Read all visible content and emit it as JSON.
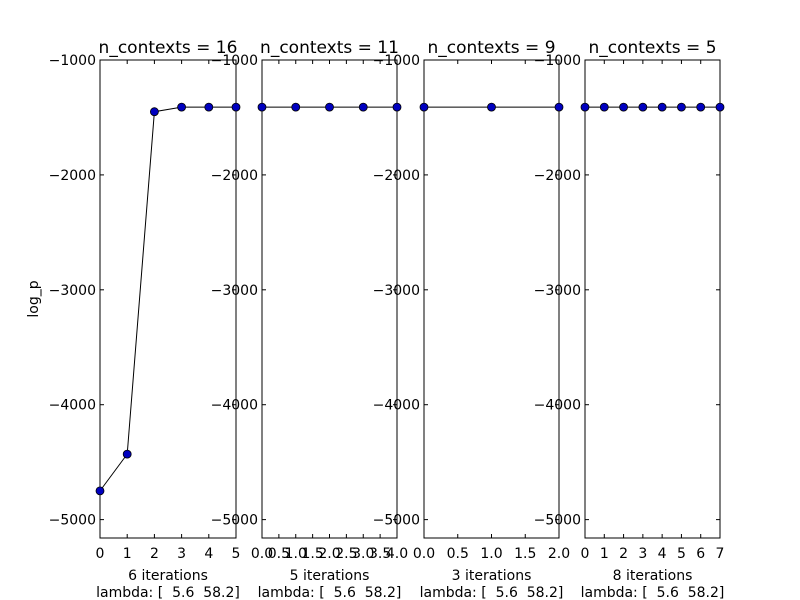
{
  "chart_data": [
    {
      "type": "line",
      "title": "n_contexts = 16",
      "xlabel": "6 iterations\nlambda: [  5.6  58.2]",
      "ylabel": "log_p",
      "xlim": [
        0,
        5
      ],
      "ylim": [
        -5160,
        -1000
      ],
      "xticks": [
        0,
        1,
        2,
        3,
        4,
        5
      ],
      "xtick_labels": [
        "0",
        "1",
        "2",
        "3",
        "4",
        "5"
      ],
      "yticks": [
        -1000,
        -2000,
        -3000,
        -4000,
        -5000
      ],
      "ytick_labels": [
        "−1000",
        "−2000",
        "−3000",
        "−4000",
        "−5000"
      ],
      "x": [
        0,
        1,
        2,
        3,
        4,
        5
      ],
      "values": [
        -4750,
        -4430,
        -1450,
        -1410,
        -1410,
        -1410
      ]
    },
    {
      "type": "line",
      "title": "n_contexts = 11",
      "xlabel": "5 iterations\nlambda: [  5.6  58.2]",
      "ylabel": "",
      "xlim": [
        0,
        4
      ],
      "ylim": [
        -5160,
        -1000
      ],
      "xticks": [
        0,
        0.5,
        1,
        1.5,
        2,
        2.5,
        3,
        3.5,
        4
      ],
      "xtick_labels": [
        "0.0",
        "0.5",
        "1.0",
        "1.5",
        "2.0",
        "2.5",
        "3.0",
        "3.5",
        "4.0"
      ],
      "yticks": [
        -1000,
        -2000,
        -3000,
        -4000,
        -5000
      ],
      "ytick_labels": [
        "−1000",
        "−2000",
        "−3000",
        "−4000",
        "−5000"
      ],
      "x": [
        0,
        1,
        2,
        3,
        4
      ],
      "values": [
        -1410,
        -1410,
        -1410,
        -1410,
        -1410
      ]
    },
    {
      "type": "line",
      "title": "n_contexts = 9",
      "xlabel": "3 iterations\nlambda: [  5.6  58.2]",
      "ylabel": "",
      "xlim": [
        0,
        2
      ],
      "ylim": [
        -5160,
        -1000
      ],
      "xticks": [
        0,
        0.5,
        1,
        1.5,
        2
      ],
      "xtick_labels": [
        "0.0",
        "0.5",
        "1.0",
        "1.5",
        "2.0"
      ],
      "yticks": [
        -1000,
        -2000,
        -3000,
        -4000,
        -5000
      ],
      "ytick_labels": [
        "−1000",
        "−2000",
        "−3000",
        "−4000",
        "−5000"
      ],
      "x": [
        0,
        1,
        2
      ],
      "values": [
        -1410,
        -1410,
        -1410
      ]
    },
    {
      "type": "line",
      "title": "n_contexts = 5",
      "xlabel": "8 iterations\nlambda: [  5.6  58.2]",
      "ylabel": "",
      "xlim": [
        0,
        7
      ],
      "ylim": [
        -5160,
        -1000
      ],
      "xticks": [
        0,
        1,
        2,
        3,
        4,
        5,
        6,
        7
      ],
      "xtick_labels": [
        "0",
        "1",
        "2",
        "3",
        "4",
        "5",
        "6",
        "7"
      ],
      "yticks": [
        -1000,
        -2000,
        -3000,
        -4000,
        -5000
      ],
      "ytick_labels": [
        "−1000",
        "−2000",
        "−3000",
        "−4000",
        "−5000"
      ],
      "x": [
        0,
        1,
        2,
        3,
        4,
        5,
        6,
        7
      ],
      "values": [
        -1410,
        -1410,
        -1410,
        -1410,
        -1410,
        -1410,
        -1410,
        -1410
      ]
    }
  ],
  "style": {
    "marker_color": "#0000bf",
    "line_color": "#000000",
    "background": "#ffffff",
    "grid": false
  }
}
